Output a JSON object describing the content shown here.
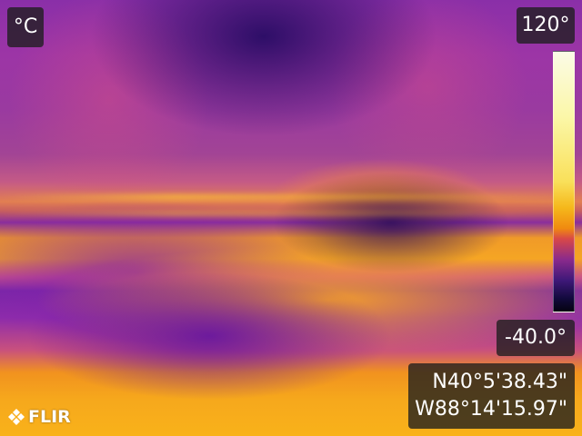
{
  "overlay": {
    "unit": "°C",
    "scale_max": "120°",
    "scale_min": "-40.0°",
    "gps": {
      "latitude": "N40°5'38.43\"",
      "longitude": "W88°14'15.97\""
    },
    "brand": "FLIR"
  },
  "palette": {
    "name": "iron",
    "colors": [
      "#fbfbe6",
      "#f9e05a",
      "#f08a10",
      "#d84848",
      "#8a2a8c",
      "#3e1878",
      "#050310"
    ]
  },
  "icons": {
    "brand_logo": "flir-logo-icon"
  }
}
